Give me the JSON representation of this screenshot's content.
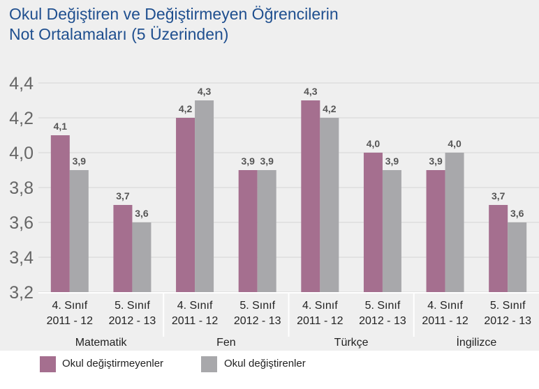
{
  "chart_data": {
    "type": "bar",
    "title_lines": [
      "Okul Değiştiren ve Değiştirmeyen Öğrencilerin",
      "Not Ortalamaları (5 Üzerinden)"
    ],
    "groups": [
      {
        "subject": "Matematik",
        "categories": [
          {
            "line1": "4. Sınıf",
            "line2": "2011 - 12"
          },
          {
            "line1": "5. Sınıf",
            "line2": "2012 - 13"
          }
        ]
      },
      {
        "subject": "Fen",
        "categories": [
          {
            "line1": "4. Sınıf",
            "line2": "2011 - 12"
          },
          {
            "line1": "5. Sınıf",
            "line2": "2012 - 13"
          }
        ]
      },
      {
        "subject": "Türkçe",
        "categories": [
          {
            "line1": "4. Sınıf",
            "line2": "2011 - 12"
          },
          {
            "line1": "5. Sınıf",
            "line2": "2012 - 13"
          }
        ]
      },
      {
        "subject": "İngilizce",
        "categories": [
          {
            "line1": "4. Sınıf",
            "line2": "2011 - 12"
          },
          {
            "line1": "5. Sınıf",
            "line2": "2012 - 13"
          }
        ]
      }
    ],
    "series": [
      {
        "name": "Okul değiştirmeyenler",
        "color": "#a56f8f",
        "values": [
          4.1,
          3.7,
          4.2,
          3.9,
          4.3,
          4.0,
          3.9,
          3.7
        ],
        "labels": [
          "4,1",
          "3,7",
          "4,2",
          "3,9",
          "4,3",
          "4,0",
          "3,9",
          "3,7"
        ]
      },
      {
        "name": "Okul değiştirenler",
        "color": "#a8a8ab",
        "values": [
          3.9,
          3.6,
          4.3,
          3.9,
          4.2,
          3.9,
          4.0,
          3.6
        ],
        "labels": [
          "3,9",
          "3,6",
          "4,3",
          "3,9",
          "4,2",
          "3,9",
          "4,0",
          "3,6"
        ]
      }
    ],
    "ylim": [
      3.2,
      4.4
    ],
    "yticks": [
      3.2,
      3.4,
      3.6,
      3.8,
      4.0,
      4.2,
      4.4
    ],
    "ytick_labels": [
      "3,2",
      "3,4",
      "3,6",
      "3,8",
      "4,0",
      "4,2",
      "4,4"
    ],
    "grid": true,
    "legend_position": "bottom-left",
    "colors": {
      "title": "#1f4f8f",
      "background": "#efefef",
      "grid": "#d6d6d6",
      "value_label": "#555555",
      "axis_label": "#222222",
      "tick_label": "#666666"
    }
  }
}
